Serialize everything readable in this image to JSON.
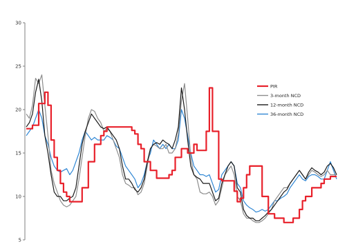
{
  "chart_data": {
    "type": "line",
    "title": "",
    "xlabel": "",
    "ylabel": "",
    "ylim": [
      5,
      30
    ],
    "y_ticks": [
      "5",
      "10",
      "15",
      "20",
      "25",
      "30"
    ],
    "x_ticks": [],
    "grid": false,
    "legend_position": "right",
    "x_index_range": [
      0,
      100
    ],
    "series": [
      {
        "name": "PIR",
        "color": "#e8202a",
        "step": true,
        "x": [
          0,
          2,
          4,
          6,
          7,
          8,
          9,
          10,
          11,
          12,
          13,
          14,
          15,
          16,
          18,
          20,
          22,
          24,
          25,
          26,
          27,
          28,
          30,
          32,
          34,
          35,
          36,
          37,
          38,
          40,
          42,
          43,
          44,
          45,
          46,
          47,
          48,
          50,
          51,
          52,
          53,
          54,
          55,
          56,
          58,
          59,
          60,
          62,
          63,
          64,
          66,
          67,
          68,
          69,
          70,
          71,
          72,
          74,
          76,
          78,
          80,
          82,
          83,
          84,
          86,
          88,
          89,
          90,
          92,
          94,
          95,
          96,
          98,
          100
        ],
        "values": [
          17.8,
          18.2,
          20.7,
          22.0,
          20.5,
          16.5,
          14.5,
          13.0,
          11.5,
          10.5,
          10.0,
          9.4,
          9.4,
          9.4,
          11.0,
          14.0,
          16.0,
          17.0,
          17.5,
          18.0,
          18.0,
          18.0,
          18.0,
          18.0,
          17.6,
          17.2,
          16.0,
          15.5,
          14.0,
          13.0,
          12.1,
          12.1,
          12.1,
          12.1,
          12.5,
          13.0,
          14.5,
          15.5,
          15.5,
          15.0,
          15.0,
          16.0,
          15.3,
          15.3,
          17.5,
          22.5,
          17.5,
          12.0,
          11.8,
          11.8,
          11.8,
          10.6,
          9.4,
          9.8,
          11.0,
          12.5,
          13.5,
          13.5,
          10.0,
          8.0,
          7.5,
          7.5,
          7.0,
          7.0,
          7.5,
          8.5,
          9.5,
          10.0,
          11.0,
          11.0,
          11.5,
          12.0,
          12.3,
          12.3
        ]
      },
      {
        "name": "3-month NCD",
        "color": "#8c8c8c",
        "step": false,
        "x": [
          0,
          1,
          2,
          3,
          4,
          5,
          6,
          7,
          8,
          9,
          10,
          11,
          12,
          13,
          14,
          15,
          16,
          17,
          18,
          19,
          20,
          21,
          22,
          23,
          24,
          25,
          26,
          27,
          28,
          29,
          30,
          31,
          32,
          33,
          34,
          35,
          36,
          37,
          38,
          39,
          40,
          41,
          42,
          43,
          44,
          45,
          46,
          47,
          48,
          49,
          50,
          51,
          52,
          53,
          54,
          55,
          56,
          57,
          58,
          59,
          60,
          61,
          62,
          63,
          64,
          65,
          66,
          67,
          68,
          69,
          70,
          71,
          72,
          73,
          74,
          75,
          76,
          77,
          78,
          79,
          80,
          81,
          82,
          83,
          84,
          85,
          86,
          87,
          88,
          89,
          90,
          91,
          92,
          93,
          94,
          95,
          96,
          97,
          98,
          99,
          100
        ],
        "values": [
          19.5,
          19.0,
          20.5,
          23.6,
          23.0,
          24.0,
          20.5,
          17.0,
          13.0,
          11.5,
          10.5,
          9.5,
          9.0,
          8.8,
          9.0,
          9.5,
          10.0,
          12.0,
          14.5,
          17.0,
          19.0,
          20.0,
          19.8,
          19.0,
          18.5,
          17.5,
          17.8,
          17.5,
          16.5,
          15.5,
          14.5,
          12.5,
          11.5,
          11.3,
          11.0,
          11.0,
          10.2,
          10.5,
          11.5,
          13.5,
          15.5,
          16.0,
          15.8,
          15.5,
          15.5,
          16.0,
          15.0,
          15.0,
          15.5,
          17.2,
          21.0,
          23.0,
          19.0,
          14.5,
          12.5,
          12.0,
          10.5,
          10.3,
          10.3,
          10.5,
          10.0,
          9.0,
          9.5,
          11.0,
          12.5,
          13.0,
          13.5,
          12.5,
          10.0,
          9.5,
          8.0,
          7.5,
          7.5,
          7.2,
          7.0,
          7.0,
          7.2,
          7.5,
          8.0,
          8.5,
          9.5,
          10.0,
          10.5,
          11.0,
          11.0,
          11.5,
          12.0,
          12.5,
          13.0,
          12.5,
          12.0,
          12.5,
          13.0,
          12.8,
          12.5,
          12.3,
          12.5,
          13.0,
          12.5,
          12.5,
          12.5
        ]
      },
      {
        "name": "12-month NCD",
        "color": "#1a1a1a",
        "step": false,
        "x": [
          0,
          1,
          2,
          3,
          4,
          5,
          6,
          7,
          8,
          9,
          10,
          11,
          12,
          13,
          14,
          15,
          16,
          17,
          18,
          19,
          20,
          21,
          22,
          23,
          24,
          25,
          26,
          27,
          28,
          29,
          30,
          31,
          32,
          33,
          34,
          35,
          36,
          37,
          38,
          39,
          40,
          41,
          42,
          43,
          44,
          45,
          46,
          47,
          48,
          49,
          50,
          51,
          52,
          53,
          54,
          55,
          56,
          57,
          58,
          59,
          60,
          61,
          62,
          63,
          64,
          65,
          66,
          67,
          68,
          69,
          70,
          71,
          72,
          73,
          74,
          75,
          76,
          77,
          78,
          79,
          80,
          81,
          82,
          83,
          84,
          85,
          86,
          87,
          88,
          89,
          90,
          91,
          92,
          93,
          94,
          95,
          96,
          97,
          98,
          99,
          100
        ],
        "values": [
          18.0,
          18.5,
          19.5,
          22.0,
          23.5,
          21.0,
          17.0,
          15.0,
          12.5,
          10.5,
          10.0,
          10.0,
          9.5,
          9.5,
          9.8,
          10.0,
          11.0,
          13.5,
          16.0,
          17.5,
          18.5,
          19.5,
          19.0,
          18.5,
          18.0,
          17.8,
          18.0,
          17.5,
          17.0,
          16.5,
          15.5,
          13.5,
          12.0,
          12.0,
          11.5,
          10.8,
          10.5,
          11.0,
          12.0,
          14.0,
          15.5,
          16.0,
          16.2,
          16.0,
          16.5,
          16.2,
          16.0,
          15.5,
          16.5,
          18.0,
          22.5,
          20.0,
          16.5,
          13.5,
          12.5,
          12.2,
          12.0,
          11.5,
          11.5,
          11.5,
          10.5,
          9.5,
          9.8,
          11.5,
          12.5,
          13.5,
          14.0,
          13.5,
          11.0,
          10.5,
          8.5,
          7.8,
          7.5,
          7.5,
          7.2,
          7.2,
          7.5,
          7.8,
          8.2,
          8.5,
          9.0,
          9.5,
          10.0,
          10.5,
          10.8,
          11.5,
          12.0,
          12.5,
          13.0,
          12.5,
          12.0,
          12.8,
          13.3,
          13.0,
          12.8,
          12.5,
          12.8,
          13.5,
          13.8,
          13.3,
          12.5
        ]
      },
      {
        "name": "36-month NCD",
        "color": "#2e86d4",
        "step": false,
        "x": [
          0,
          1,
          2,
          3,
          4,
          5,
          6,
          7,
          8,
          9,
          10,
          11,
          12,
          13,
          14,
          15,
          16,
          17,
          18,
          19,
          20,
          21,
          22,
          23,
          24,
          25,
          26,
          27,
          28,
          29,
          30,
          31,
          32,
          33,
          34,
          35,
          36,
          37,
          38,
          39,
          40,
          41,
          42,
          43,
          44,
          45,
          46,
          47,
          48,
          49,
          50,
          51,
          52,
          53,
          54,
          55,
          56,
          57,
          58,
          59,
          60,
          61,
          62,
          63,
          64,
          65,
          66,
          67,
          68,
          69,
          70,
          71,
          72,
          73,
          74,
          75,
          76,
          77,
          78,
          79,
          80,
          81,
          82,
          83,
          84,
          85,
          86,
          87,
          88,
          89,
          90,
          91,
          92,
          93,
          94,
          95,
          96,
          97,
          98,
          99,
          100
        ],
        "values": [
          17.0,
          17.5,
          18.0,
          19.0,
          20.0,
          19.0,
          17.0,
          16.0,
          14.5,
          13.5,
          13.0,
          12.8,
          13.0,
          13.2,
          12.5,
          13.0,
          14.0,
          15.0,
          16.5,
          17.5,
          17.0,
          16.5,
          16.8,
          16.5,
          16.5,
          16.5,
          17.0,
          16.8,
          16.5,
          15.8,
          15.5,
          14.5,
          13.5,
          13.0,
          12.5,
          12.0,
          11.0,
          11.5,
          12.5,
          14.0,
          15.0,
          16.5,
          16.0,
          15.5,
          16.0,
          15.5,
          16.0,
          15.5,
          15.5,
          16.5,
          20.0,
          19.0,
          17.0,
          15.0,
          13.5,
          13.0,
          12.5,
          12.5,
          12.3,
          12.5,
          11.5,
          10.5,
          10.8,
          12.5,
          13.0,
          13.5,
          14.0,
          13.5,
          11.5,
          11.0,
          9.5,
          9.0,
          8.7,
          8.5,
          8.2,
          8.3,
          8.5,
          8.3,
          8.5,
          9.0,
          9.5,
          9.5,
          9.8,
          10.0,
          10.3,
          11.0,
          11.5,
          12.0,
          12.5,
          12.0,
          11.8,
          12.3,
          12.5,
          12.5,
          12.3,
          12.0,
          12.0,
          13.0,
          14.0,
          13.0,
          12.0
        ]
      }
    ]
  }
}
